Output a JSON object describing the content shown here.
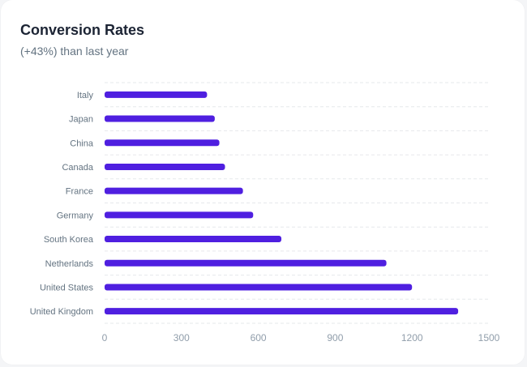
{
  "card": {
    "title": "Conversion Rates",
    "subtitle": "(+43%) than last year"
  },
  "chart_data": {
    "type": "bar",
    "orientation": "horizontal",
    "categories": [
      "Italy",
      "Japan",
      "China",
      "Canada",
      "France",
      "Germany",
      "South Korea",
      "Netherlands",
      "United States",
      "United Kingdom"
    ],
    "values": [
      400,
      430,
      448,
      470,
      540,
      580,
      690,
      1100,
      1200,
      1380
    ],
    "xlim": [
      0,
      1500
    ],
    "xticks": [
      0,
      300,
      600,
      900,
      1200,
      1500
    ],
    "grid": true,
    "bar_color": "#4f1fe0",
    "grid_color": "#e6e8eb",
    "label_color": "#637381"
  }
}
